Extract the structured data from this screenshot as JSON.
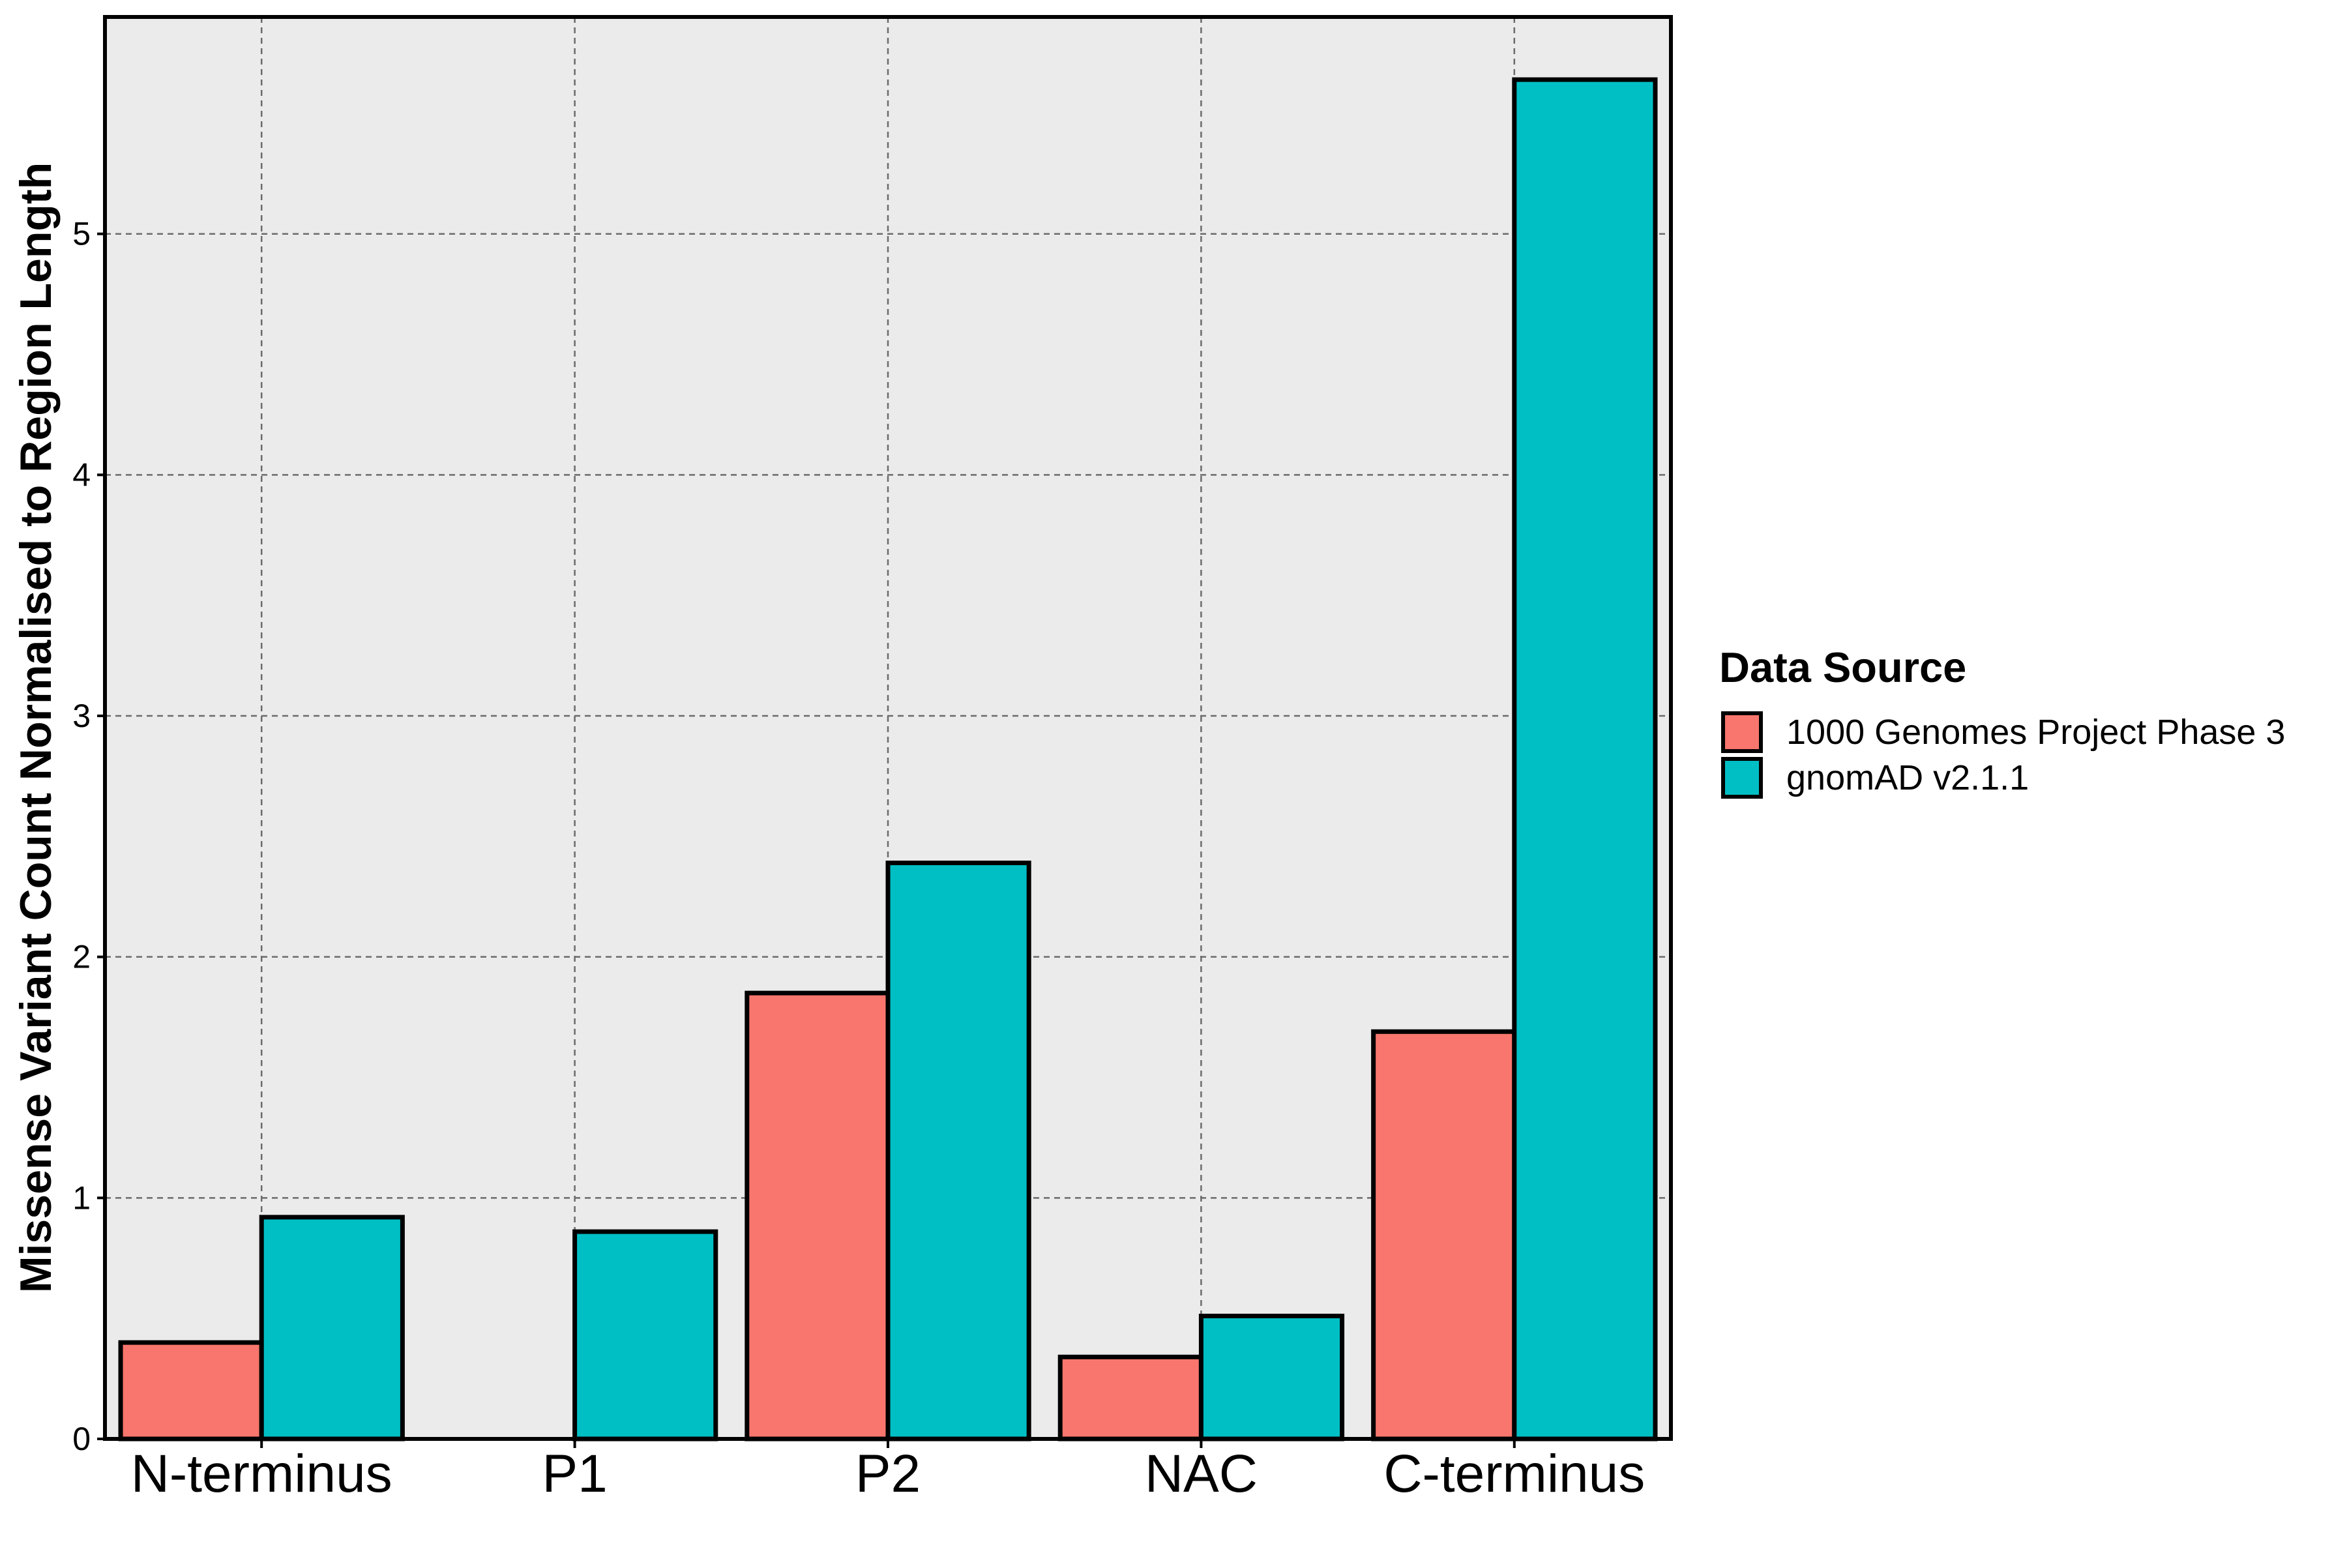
{
  "chart_data": {
    "type": "bar",
    "title": "",
    "xlabel": "",
    "ylabel": "Missense Variant Count Normalised to Region Length",
    "categories": [
      "N-terminus",
      "P1",
      "P2",
      "NAC",
      "C-terminus"
    ],
    "series": [
      {
        "name": "1000 Genomes Project Phase 3",
        "color": "#F8766D",
        "values": [
          0.4,
          0.0,
          1.85,
          0.34,
          1.69
        ]
      },
      {
        "name": "gnomAD v2.1.1",
        "color": "#00BFC4",
        "values": [
          0.92,
          0.86,
          2.39,
          0.51,
          5.64
        ]
      }
    ],
    "ylim": [
      0,
      5.9
    ],
    "yticks": [
      0,
      1,
      2,
      3,
      4,
      5
    ],
    "ytick_labels": [
      "0",
      "1",
      "2",
      "3",
      "4",
      "5"
    ],
    "grid": true,
    "grid_style": "dashed",
    "panel_background": "#EBEBEB",
    "legend": {
      "title": "Data Source",
      "placement": "right"
    }
  }
}
